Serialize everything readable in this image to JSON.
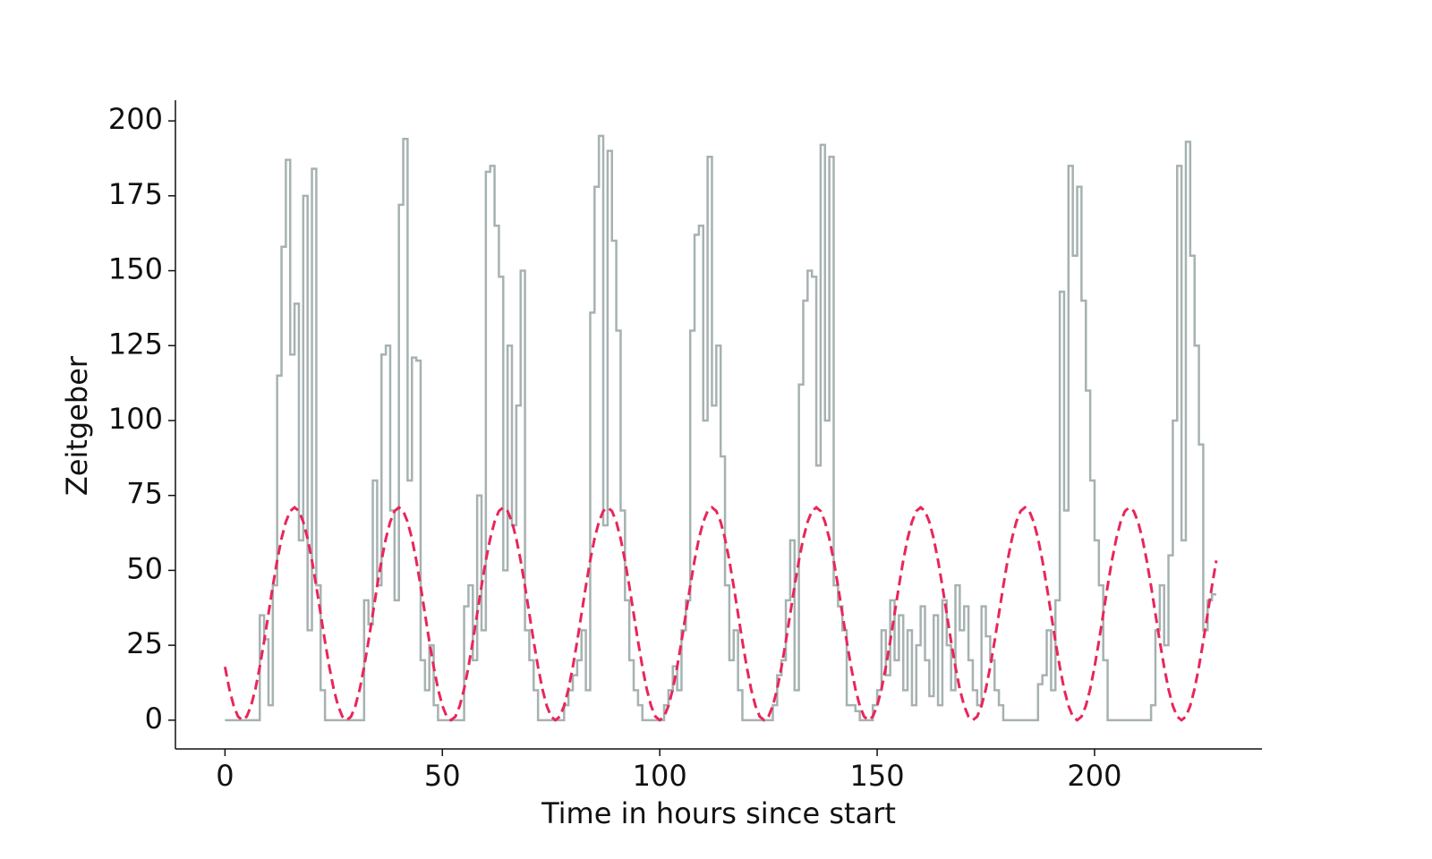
{
  "chart_data": {
    "type": "line",
    "xlabel": "Time in hours since start",
    "ylabel": "Zeitgeber",
    "x": [
      0,
      1,
      2,
      3,
      4,
      5,
      6,
      7,
      8,
      9,
      10,
      11,
      12,
      13,
      14,
      15,
      16,
      17,
      18,
      19,
      20,
      21,
      22,
      23,
      24,
      25,
      26,
      27,
      28,
      29,
      30,
      31,
      32,
      33,
      34,
      35,
      36,
      37,
      38,
      39,
      40,
      41,
      42,
      43,
      44,
      45,
      46,
      47,
      48,
      49,
      50,
      51,
      52,
      53,
      54,
      55,
      56,
      57,
      58,
      59,
      60,
      61,
      62,
      63,
      64,
      65,
      66,
      67,
      68,
      69,
      70,
      71,
      72,
      73,
      74,
      75,
      76,
      77,
      78,
      79,
      80,
      81,
      82,
      83,
      84,
      85,
      86,
      87,
      88,
      89,
      90,
      91,
      92,
      93,
      94,
      95,
      96,
      97,
      98,
      99,
      100,
      101,
      102,
      103,
      104,
      105,
      106,
      107,
      108,
      109,
      110,
      111,
      112,
      113,
      114,
      115,
      116,
      117,
      118,
      119,
      120,
      121,
      122,
      123,
      124,
      125,
      126,
      127,
      128,
      129,
      130,
      131,
      132,
      133,
      134,
      135,
      136,
      137,
      138,
      139,
      140,
      141,
      142,
      143,
      144,
      145,
      146,
      147,
      148,
      149,
      150,
      151,
      152,
      153,
      154,
      155,
      156,
      157,
      158,
      159,
      160,
      161,
      162,
      163,
      164,
      165,
      166,
      167,
      168,
      169,
      170,
      171,
      172,
      173,
      174,
      175,
      176,
      177,
      178,
      179,
      180,
      181,
      182,
      183,
      184,
      185,
      186,
      187,
      188,
      189,
      190,
      191,
      192,
      193,
      194,
      195,
      196,
      197,
      198,
      199,
      200,
      201,
      202,
      203,
      204,
      205,
      206,
      207,
      208,
      209,
      210,
      211,
      212,
      213,
      214,
      215,
      216,
      217,
      218,
      219,
      220,
      221,
      222,
      223,
      224,
      225,
      226,
      227,
      228
    ],
    "series": [
      {
        "color": "#a6b2b1",
        "style": "step",
        "values": [
          0,
          0,
          0,
          0,
          0,
          0,
          0,
          0,
          35,
          27,
          5,
          45,
          115,
          158,
          187,
          122,
          139,
          60,
          175,
          30,
          184,
          45,
          10,
          0,
          0,
          0,
          0,
          0,
          0,
          0,
          0,
          0,
          40,
          32,
          80,
          45,
          122,
          125,
          70,
          40,
          172,
          194,
          80,
          121,
          120,
          20,
          10,
          25,
          5,
          0,
          0,
          0,
          0,
          0,
          0,
          38,
          45,
          20,
          75,
          30,
          183,
          185,
          165,
          148,
          50,
          125,
          65,
          105,
          150,
          30,
          20,
          10,
          0,
          0,
          0,
          0,
          0,
          0,
          5,
          10,
          15,
          20,
          30,
          10,
          136,
          178,
          195,
          65,
          190,
          160,
          130,
          70,
          40,
          20,
          10,
          5,
          0,
          0,
          0,
          0,
          0,
          5,
          10,
          18,
          10,
          30,
          40,
          130,
          162,
          165,
          100,
          188,
          105,
          125,
          88,
          45,
          20,
          30,
          10,
          0,
          0,
          0,
          0,
          0,
          0,
          0,
          5,
          15,
          20,
          40,
          60,
          10,
          112,
          140,
          150,
          148,
          85,
          192,
          100,
          188,
          45,
          38,
          30,
          5,
          5,
          3,
          0,
          0,
          0,
          5,
          10,
          30,
          15,
          40,
          20,
          35,
          10,
          30,
          5,
          25,
          38,
          20,
          8,
          35,
          5,
          40,
          25,
          10,
          45,
          30,
          38,
          20,
          10,
          5,
          38,
          28,
          20,
          10,
          5,
          0,
          0,
          0,
          0,
          0,
          0,
          0,
          0,
          12,
          15,
          30,
          10,
          40,
          143,
          70,
          185,
          155,
          178,
          140,
          110,
          80,
          60,
          45,
          20,
          0,
          0,
          0,
          0,
          0,
          0,
          0,
          0,
          0,
          0,
          5,
          30,
          45,
          25,
          55,
          100,
          185,
          60,
          193,
          155,
          125,
          92,
          30,
          40,
          42,
          42
        ]
      },
      {
        "color": "#e8265a",
        "style": "dashed",
        "values": [
          17.8,
          10.4,
          4.8,
          1.2,
          0,
          1.2,
          4.8,
          10.4,
          17.8,
          26.3,
          35.5,
          44.7,
          53.3,
          60.6,
          66.2,
          69.8,
          71,
          69.8,
          66.2,
          60.6,
          53.3,
          44.7,
          35.5,
          26.3,
          17.8,
          10.4,
          4.8,
          1.2,
          0,
          1.2,
          4.8,
          10.4,
          17.8,
          26.3,
          35.5,
          44.7,
          53.3,
          60.6,
          66.2,
          69.8,
          71,
          69.8,
          66.2,
          60.6,
          53.3,
          44.7,
          35.5,
          26.3,
          17.8,
          10.4,
          4.8,
          1.2,
          0,
          1.2,
          4.8,
          10.4,
          17.8,
          26.3,
          35.5,
          44.7,
          53.3,
          60.6,
          66.2,
          69.8,
          71,
          69.8,
          66.2,
          60.6,
          53.3,
          44.7,
          35.5,
          26.3,
          17.8,
          10.4,
          4.8,
          1.2,
          0,
          1.2,
          4.8,
          10.4,
          17.8,
          26.3,
          35.5,
          44.7,
          53.3,
          60.6,
          66.2,
          69.8,
          71,
          69.8,
          66.2,
          60.6,
          53.3,
          44.7,
          35.5,
          26.3,
          17.8,
          10.4,
          4.8,
          1.2,
          0,
          1.2,
          4.8,
          10.4,
          17.8,
          26.3,
          35.5,
          44.7,
          53.3,
          60.6,
          66.2,
          69.8,
          71,
          69.8,
          66.2,
          60.6,
          53.3,
          44.7,
          35.5,
          26.3,
          17.8,
          10.4,
          4.8,
          1.2,
          0,
          1.2,
          4.8,
          10.4,
          17.8,
          26.3,
          35.5,
          44.7,
          53.3,
          60.6,
          66.2,
          69.8,
          71,
          69.8,
          66.2,
          60.6,
          53.3,
          44.7,
          35.5,
          26.3,
          17.8,
          10.4,
          4.8,
          1.2,
          0,
          1.2,
          4.8,
          10.4,
          17.8,
          26.3,
          35.5,
          44.7,
          53.3,
          60.6,
          66.2,
          69.8,
          71,
          69.8,
          66.2,
          60.6,
          53.3,
          44.7,
          35.5,
          26.3,
          17.8,
          10.4,
          4.8,
          1.2,
          0,
          1.2,
          4.8,
          10.4,
          17.8,
          26.3,
          35.5,
          44.7,
          53.3,
          60.6,
          66.2,
          69.8,
          71,
          69.8,
          66.2,
          60.6,
          53.3,
          44.7,
          35.5,
          26.3,
          17.8,
          10.4,
          4.8,
          1.2,
          0,
          1.2,
          4.8,
          10.4,
          17.8,
          26.3,
          35.5,
          44.7,
          53.3,
          60.6,
          66.2,
          69.8,
          71,
          69.8,
          66.2,
          60.6,
          53.3,
          44.7,
          35.5,
          26.3,
          17.8,
          10.4,
          4.8,
          1.2,
          0,
          1.2,
          4.8,
          10.4,
          17.8,
          26.3,
          35.5,
          44.7,
          53.3
        ]
      }
    ],
    "xlim": [
      -11.4,
      238.5
    ],
    "xticks": [
      0,
      50,
      100,
      150,
      200
    ],
    "ylim": [
      -9.6,
      206.9
    ],
    "yticks": [
      0,
      25,
      50,
      75,
      100,
      125,
      150,
      175,
      200
    ]
  }
}
